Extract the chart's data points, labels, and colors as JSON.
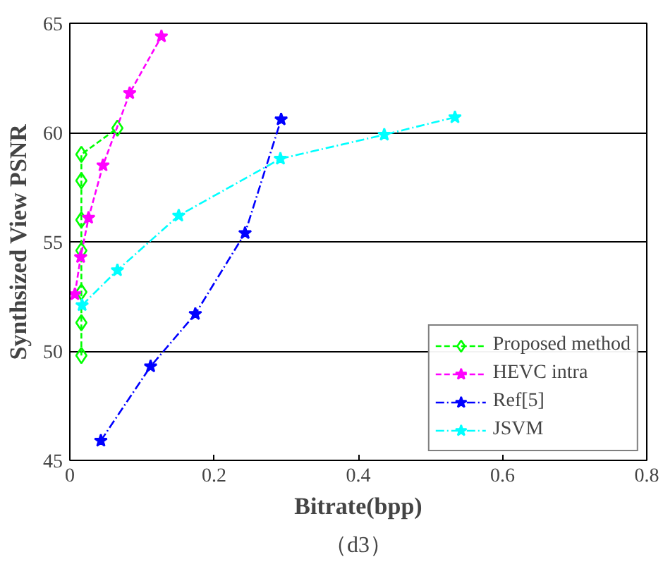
{
  "chart_data": {
    "type": "line",
    "xlabel": "Bitrate(bpp)",
    "ylabel": "Synthsized View PSNR",
    "annotations": [
      "（d3）"
    ],
    "xlim": [
      0,
      0.8
    ],
    "ylim": [
      45,
      65
    ],
    "xticks": [
      0,
      0.2,
      0.4,
      0.6,
      0.8
    ],
    "yticks": [
      45,
      50,
      55,
      60,
      65
    ],
    "grid": "y",
    "legend": "bottom right",
    "series": [
      {
        "name": "Proposed method",
        "color": "#00ff00",
        "marker": "diamond",
        "line_style": "dashed",
        "x": [
          0.016,
          0.016,
          0.016,
          0.016,
          0.016,
          0.016,
          0.016,
          0.066
        ],
        "values": [
          49.8,
          51.3,
          52.7,
          54.6,
          56.0,
          57.8,
          59.0,
          60.2
        ]
      },
      {
        "name": "HEVC intra",
        "color": "#ff00ff",
        "marker": "star",
        "line_style": "dashed",
        "x": [
          0.007,
          0.015,
          0.026,
          0.046,
          0.083,
          0.127
        ],
        "values": [
          52.6,
          54.3,
          56.1,
          58.5,
          61.8,
          64.4
        ]
      },
      {
        "name": "Ref[5]",
        "color": "#0000ff",
        "marker": "star",
        "line_style": "dashdot",
        "x": [
          0.043,
          0.112,
          0.174,
          0.243,
          0.293
        ],
        "values": [
          45.9,
          49.3,
          51.7,
          55.4,
          60.6
        ]
      },
      {
        "name": "JSVM",
        "color": "#00ffff",
        "marker": "star",
        "line_style": "dashdot",
        "x": [
          0.017,
          0.066,
          0.151,
          0.292,
          0.436,
          0.534
        ],
        "values": [
          52.1,
          53.7,
          56.2,
          58.8,
          59.9,
          60.7
        ]
      }
    ]
  }
}
